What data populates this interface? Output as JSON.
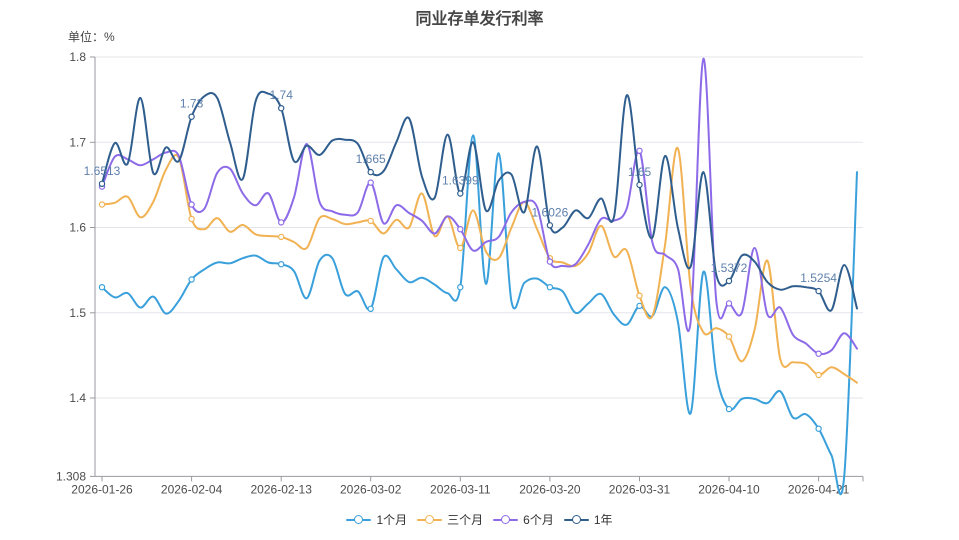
{
  "title": "同业存单发行利率",
  "unit_label": "单位：%",
  "styles": {
    "title_color": "#464646",
    "axis_line_color": "#999aa0",
    "grid_line_color": "#e3e5ea",
    "tick_text_color": "#4d4d4d",
    "point_label_color": "#5e80ac",
    "background": "#ffffff"
  },
  "chart_data": {
    "type": "line",
    "title": "同业存单发行利率",
    "ylabel": "单位：%",
    "smooth": true,
    "grid": true,
    "legend_position": "bottom",
    "ylim": [
      1.308,
      1.8
    ],
    "y_tick_labels": [
      "1.8",
      "1.7",
      "1.6",
      "1.5",
      "1.4",
      "1.308"
    ],
    "y_ticks": [
      1.8,
      1.7,
      1.6,
      1.5,
      1.4,
      1.308
    ],
    "x_tick_labels": [
      "2026-01-26",
      "2026-02-04",
      "2026-02-13",
      "2026-03-02",
      "2026-03-11",
      "2026-03-20",
      "2026-03-31",
      "2026-04-10",
      "2026-04-21"
    ],
    "x_tick_indices": [
      0,
      7,
      14,
      21,
      28,
      35,
      42,
      49,
      56
    ],
    "marker_indices": [
      0,
      7,
      14,
      21,
      28,
      35,
      42,
      49,
      56
    ],
    "labeled_series": "1年",
    "point_labels": [
      "1.6513",
      "1.73",
      "1.74",
      "1.665",
      "1.6399",
      "1.6026",
      "1.65",
      "1.5372",
      "1.5254"
    ],
    "x": [
      "2026-01-26",
      "2026-01-27",
      "2026-01-28",
      "2026-01-29",
      "2026-01-30",
      "2026-02-02",
      "2026-02-03",
      "2026-02-04",
      "2026-02-05",
      "2026-02-06",
      "2026-02-09",
      "2026-02-10",
      "2026-02-11",
      "2026-02-12",
      "2026-02-13",
      "2026-02-16",
      "2026-02-23",
      "2026-02-24",
      "2026-02-25",
      "2026-02-26",
      "2026-02-27",
      "2026-03-02",
      "2026-03-03",
      "2026-03-04",
      "2026-03-05",
      "2026-03-06",
      "2026-03-09",
      "2026-03-10",
      "2026-03-11",
      "2026-03-12",
      "2026-03-13",
      "2026-03-16",
      "2026-03-17",
      "2026-03-18",
      "2026-03-19",
      "2026-03-20",
      "2026-03-23",
      "2026-03-24",
      "2026-03-25",
      "2026-03-26",
      "2026-03-27",
      "2026-03-30",
      "2026-03-31",
      "2026-04-01",
      "2026-04-02",
      "2026-04-03",
      "2026-04-07",
      "2026-04-08",
      "2026-04-09",
      "2026-04-10",
      "2026-04-13",
      "2026-04-14",
      "2026-04-15",
      "2026-04-16",
      "2026-04-17",
      "2026-04-20",
      "2026-04-21",
      "2026-04-22",
      "2026-04-23",
      "2026-04-24"
    ],
    "series": [
      {
        "name": "1个月",
        "color": "#3AA0DB",
        "values": [
          1.53,
          1.518,
          1.523,
          1.506,
          1.519,
          1.499,
          1.514,
          1.539,
          1.551,
          1.559,
          1.558,
          1.564,
          1.567,
          1.559,
          1.557,
          1.549,
          1.517,
          1.561,
          1.564,
          1.522,
          1.525,
          1.5046,
          1.565,
          1.551,
          1.536,
          1.541,
          1.533,
          1.523,
          1.53,
          1.708,
          1.534,
          1.687,
          1.513,
          1.535,
          1.54,
          1.53,
          1.525,
          1.5,
          1.511,
          1.522,
          1.498,
          1.486,
          1.508,
          1.496,
          1.53,
          1.49,
          1.382,
          1.548,
          1.428,
          1.387,
          1.399,
          1.399,
          1.394,
          1.408,
          1.377,
          1.381,
          1.364,
          1.333,
          1.308,
          1.665
        ]
      },
      {
        "name": "三个月",
        "color": "#F1B253",
        "values": [
          1.627,
          1.629,
          1.636,
          1.612,
          1.63,
          1.668,
          1.682,
          1.61,
          1.598,
          1.611,
          1.595,
          1.603,
          1.592,
          1.59,
          1.589,
          1.583,
          1.576,
          1.611,
          1.61,
          1.604,
          1.606,
          1.6078,
          1.593,
          1.609,
          1.6,
          1.64,
          1.59,
          1.613,
          1.576,
          1.62,
          1.572,
          1.564,
          1.6,
          1.63,
          1.598,
          1.564,
          1.559,
          1.555,
          1.57,
          1.602,
          1.566,
          1.573,
          1.52,
          1.496,
          1.58,
          1.693,
          1.53,
          1.477,
          1.482,
          1.472,
          1.443,
          1.48,
          1.561,
          1.446,
          1.442,
          1.44,
          1.427,
          1.436,
          1.428,
          1.418
        ]
      },
      {
        "name": "6个月",
        "color": "#8D6BE8",
        "values": [
          1.648,
          1.683,
          1.68,
          1.673,
          1.68,
          1.688,
          1.684,
          1.627,
          1.622,
          1.664,
          1.669,
          1.64,
          1.626,
          1.64,
          1.606,
          1.635,
          1.698,
          1.63,
          1.619,
          1.615,
          1.618,
          1.6527,
          1.605,
          1.626,
          1.617,
          1.608,
          1.593,
          1.613,
          1.598,
          1.573,
          1.583,
          1.589,
          1.618,
          1.63,
          1.624,
          1.56,
          1.555,
          1.557,
          1.58,
          1.61,
          1.608,
          1.622,
          1.69,
          1.583,
          1.568,
          1.552,
          1.489,
          1.798,
          1.515,
          1.511,
          1.5,
          1.576,
          1.498,
          1.506,
          1.474,
          1.464,
          1.452,
          1.456,
          1.476,
          1.458
        ]
      },
      {
        "name": "1年",
        "color": "#2F5E8E",
        "values": [
          1.6513,
          1.699,
          1.675,
          1.752,
          1.664,
          1.694,
          1.678,
          1.73,
          1.754,
          1.752,
          1.7,
          1.657,
          1.748,
          1.757,
          1.74,
          1.678,
          1.696,
          1.685,
          1.702,
          1.703,
          1.698,
          1.665,
          1.666,
          1.7,
          1.728,
          1.66,
          1.635,
          1.709,
          1.6399,
          1.7,
          1.62,
          1.655,
          1.662,
          1.618,
          1.695,
          1.6026,
          1.6,
          1.62,
          1.611,
          1.634,
          1.612,
          1.755,
          1.65,
          1.588,
          1.684,
          1.6,
          1.554,
          1.665,
          1.545,
          1.5372,
          1.567,
          1.56,
          1.536,
          1.527,
          1.531,
          1.53,
          1.5254,
          1.503,
          1.556,
          1.505
        ]
      }
    ]
  }
}
